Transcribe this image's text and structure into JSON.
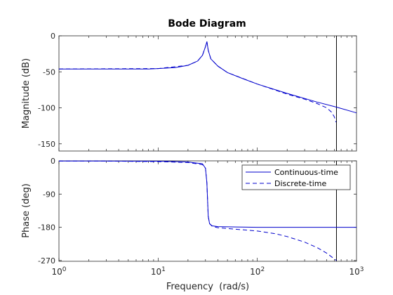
{
  "colors": {
    "line": "#0000cc",
    "axis": "#262626",
    "background": "#ffffff",
    "marker": "#000000"
  },
  "chart_data": {
    "type": "line",
    "title": "Bode Diagram",
    "xlabel": "Frequency  (rad/s)",
    "xscale": "log",
    "xlim": [
      1,
      1000
    ],
    "x_ticks": [
      {
        "value": 1,
        "base": "10",
        "exp": "0"
      },
      {
        "value": 10,
        "base": "10",
        "exp": "1"
      },
      {
        "value": 100,
        "base": "10",
        "exp": "2"
      },
      {
        "value": 1000,
        "base": "10",
        "exp": "3"
      }
    ],
    "vertical_marker_x": 628,
    "legend": {
      "placement": "top-right",
      "panel": "phase"
    },
    "panels": [
      {
        "name": "magnitude",
        "ylabel": "Magnitude (dB)",
        "ylim": [
          -160,
          0
        ],
        "yticks": [
          "0",
          "-50",
          "-100",
          "-150"
        ],
        "ytick_values": [
          0,
          -50,
          -100,
          -150
        ],
        "series": [
          {
            "name": "Continuous-time",
            "style": "solid",
            "x": [
              1,
              3,
              8,
              10,
              15,
              20,
              25,
              28,
              30,
              31,
              32,
              34,
              40,
              50,
              70,
              100,
              200,
              400,
              628,
              1000
            ],
            "y": [
              -46,
              -46,
              -46,
              -45.5,
              -44,
              -41,
              -35,
              -27,
              -15,
              -8,
              -20,
              -32,
              -42,
              -51,
              -59,
              -67,
              -80,
              -92,
              -99,
              -107
            ]
          },
          {
            "name": "Discrete-time",
            "style": "dashed",
            "x": [
              1,
              10,
              20,
              25,
              28,
              30,
              31,
              32,
              34,
              40,
              50,
              100,
              200,
              300,
              400,
              500,
              560,
              600,
              620
            ],
            "y": [
              -46,
              -45.5,
              -41,
              -35,
              -27,
              -15,
              -8,
              -20,
              -32,
              -42,
              -51,
              -67,
              -81,
              -88,
              -94,
              -100,
              -106,
              -113,
              -120
            ]
          }
        ]
      },
      {
        "name": "phase",
        "ylabel": "Phase (deg)",
        "ylim": [
          -272,
          0
        ],
        "yticks": [
          "0",
          "-90",
          "-180",
          "-270"
        ],
        "ytick_values": [
          0,
          -90,
          -180,
          -270
        ],
        "series": [
          {
            "name": "Continuous-time",
            "style": "solid",
            "x": [
              1,
              10,
              20,
              28,
              30,
              31,
              32,
              33,
              35,
              40,
              60,
              100,
              1000
            ],
            "y": [
              -0.3,
              -1,
              -3,
              -8,
              -20,
              -60,
              -150,
              -170,
              -176,
              -178,
              -179,
              -180,
              -180
            ]
          },
          {
            "name": "Discrete-time",
            "style": "dashed",
            "x": [
              1,
              3,
              10,
              20,
              28,
              30,
              31,
              32,
              33,
              35,
              40,
              60,
              100,
              150,
              200,
              300,
              400,
              500,
              628
            ],
            "y": [
              -0.3,
              -0.6,
              -2,
              -4.5,
              -10,
              -20,
              -60,
              -150,
              -170,
              -177,
              -181,
              -185,
              -190,
              -197,
              -205,
              -220,
              -235,
              -250,
              -270
            ]
          }
        ]
      }
    ]
  }
}
